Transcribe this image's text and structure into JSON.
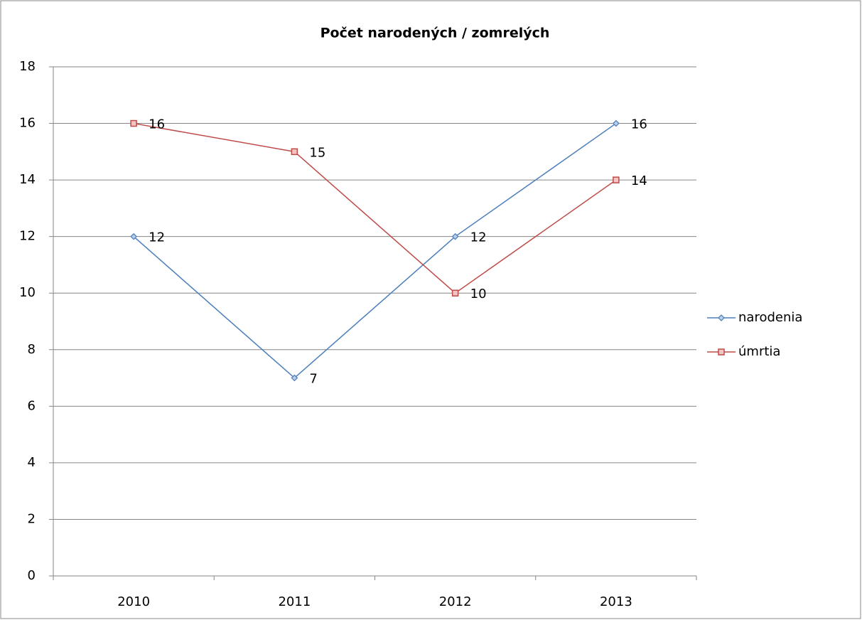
{
  "chart_data": {
    "type": "line",
    "title": "Počet narodených / zomrelých",
    "categories": [
      "2010",
      "2011",
      "2012",
      "2013"
    ],
    "series": [
      {
        "name": "narodenia",
        "color": "#4a7ebb",
        "marker": "diamond",
        "values": [
          12,
          7,
          12,
          16
        ]
      },
      {
        "name": "úmrtia",
        "color": "#be4b48",
        "marker": "square",
        "values": [
          16,
          15,
          10,
          14
        ]
      }
    ],
    "ylim": [
      0,
      18
    ],
    "yticks": [
      0,
      2,
      4,
      6,
      8,
      10,
      12,
      14,
      16,
      18
    ],
    "grid": true,
    "legend": "right"
  }
}
